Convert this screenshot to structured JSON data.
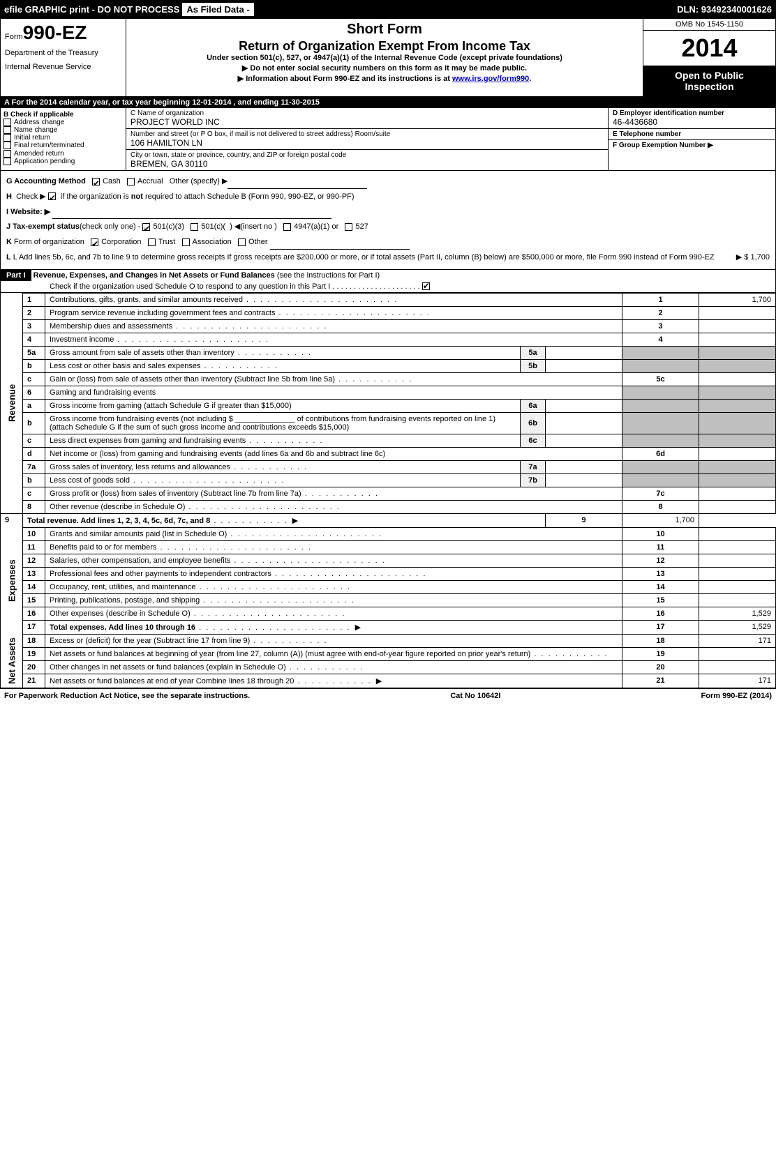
{
  "topbar": {
    "left": "efile GRAPHIC print - DO NOT PROCESS",
    "btn": "As Filed Data -",
    "right": "DLN: 93492340001626"
  },
  "header": {
    "form_prefix": "Form",
    "form_number": "990-EZ",
    "dept1": "Department of the Treasury",
    "dept2": "Internal Revenue Service",
    "short_form": "Short Form",
    "title": "Return of Organization Exempt From Income Tax",
    "subtitle": "Under section 501(c), 527, or 4947(a)(1) of the Internal Revenue Code (except private foundations)",
    "line1": "▶ Do not enter social security numbers on this form as it may be made public.",
    "line2_pre": "▶ Information about Form 990-EZ and its instructions is at ",
    "line2_link": "www.irs.gov/form990",
    "line2_post": ".",
    "omb": "OMB No 1545-1150",
    "year": "2014",
    "inspection1": "Open to Public",
    "inspection2": "Inspection"
  },
  "row_a": "A  For the 2014 calendar year, or tax year beginning 12-01-2014            , and ending 11-30-2015",
  "section_b": {
    "header": "B Check if applicable",
    "items": [
      "Address change",
      "Name change",
      "Initial return",
      "Final return/terminated",
      "Amended return",
      "Application pending"
    ]
  },
  "section_c": {
    "name_label": "C Name of organization",
    "name": "PROJECT WORLD INC",
    "street_label": "Number and street (or P O box, if mail is not delivered to street address) Room/suite",
    "street": "106 HAMILTON LN",
    "city_label": "City or town, state or province, country, and ZIP or foreign postal code",
    "city": "BREMEN, GA  30110"
  },
  "section_d": {
    "ein_label": "D Employer identification number",
    "ein": "46-4436680",
    "phone_label": "E Telephone number",
    "phone": "",
    "group_label": "F Group Exemption Number  ▶",
    "group": ""
  },
  "line_g_label": "G Accounting Method",
  "line_g_cash": "Cash",
  "line_g_accrual": "Accrual",
  "line_g_other": "Other (specify) ▶",
  "line_h": "H  Check ▶        if the organization is not required to attach Schedule B (Form 990, 990-EZ, or 990-PF)",
  "line_i": "I Website: ▶",
  "line_j": "J Tax-exempt status (check only one) -       501(c)(3)        501(c)(   ) ◀(insert no )      4947(a)(1) or      527",
  "line_k": "K Form of organization        Corporation      Trust      Association      Other",
  "line_l": "L Add lines 5b, 6c, and 7b to line 9 to determine gross receipts  If gross receipts are $200,000 or more, or if total assets (Part II, column (B) below) are $500,000 or more, file Form 990 instead of Form 990-EZ",
  "line_l_amount": "▶ $ 1,700",
  "part1": {
    "label": "Part I",
    "title": "Revenue, Expenses, and Changes in Net Assets or Fund Balances",
    "inst": "(see the instructions for Part I)",
    "check": "Check if the organization used Schedule O to respond to any question in this Part I  . . . . . . . . . . . . . . . . . . . . ."
  },
  "sections": {
    "revenue": "Revenue",
    "expenses": "Expenses",
    "netassets": "Net Assets"
  },
  "rows": [
    {
      "n": "1",
      "desc": "Contributions, gifts, grants, and similar amounts received",
      "rn": "1",
      "amt": "1,700"
    },
    {
      "n": "2",
      "desc": "Program service revenue including government fees and contracts",
      "rn": "2",
      "amt": ""
    },
    {
      "n": "3",
      "desc": "Membership dues and assessments",
      "rn": "3",
      "amt": ""
    },
    {
      "n": "4",
      "desc": "Investment income",
      "rn": "4",
      "amt": ""
    }
  ],
  "row5a": {
    "n": "5a",
    "desc": "Gross amount from sale of assets other than inventory",
    "sub": "5a"
  },
  "row5b": {
    "n": "b",
    "desc": "Less  cost or other basis and sales expenses",
    "sub": "5b"
  },
  "row5c": {
    "n": "c",
    "desc": "Gain or (loss) from sale of assets other than inventory (Subtract line 5b from line 5a)",
    "rn": "5c",
    "amt": ""
  },
  "row6": {
    "n": "6",
    "desc": "Gaming and fundraising events"
  },
  "row6a": {
    "n": "a",
    "desc": "Gross income from gaming (attach Schedule G if greater than $15,000)",
    "sub": "6a"
  },
  "row6b": {
    "n": "b",
    "desc": "Gross income from fundraising events (not including $ ______________ of contributions from fundraising events reported on line 1) (attach Schedule G if the sum of such gross income and contributions exceeds $15,000)",
    "sub": "6b"
  },
  "row6c": {
    "n": "c",
    "desc": "Less  direct expenses from gaming and fundraising events",
    "sub": "6c"
  },
  "row6d": {
    "n": "d",
    "desc": "Net income or (loss) from gaming and fundraising events (add lines 6a and 6b and subtract line 6c)",
    "rn": "6d",
    "amt": ""
  },
  "row7a": {
    "n": "7a",
    "desc": "Gross sales of inventory, less returns and allowances",
    "sub": "7a"
  },
  "row7b": {
    "n": "b",
    "desc": "Less  cost of goods sold",
    "sub": "7b"
  },
  "row7c": {
    "n": "c",
    "desc": "Gross profit or (loss) from sales of inventory (Subtract line 7b from line 7a)",
    "rn": "7c",
    "amt": ""
  },
  "row8": {
    "n": "8",
    "desc": "Other revenue (describe in Schedule O)",
    "rn": "8",
    "amt": ""
  },
  "row9": {
    "n": "9",
    "desc": "Total revenue. Add lines 1, 2, 3, 4, 5c, 6d, 7c, and 8",
    "rn": "9",
    "amt": "1,700",
    "bold": true,
    "arrow": "▶"
  },
  "exp_rows": [
    {
      "n": "10",
      "desc": "Grants and similar amounts paid (list in Schedule O)",
      "rn": "10",
      "amt": ""
    },
    {
      "n": "11",
      "desc": "Benefits paid to or for members",
      "rn": "11",
      "amt": ""
    },
    {
      "n": "12",
      "desc": "Salaries, other compensation, and employee benefits",
      "rn": "12",
      "amt": ""
    },
    {
      "n": "13",
      "desc": "Professional fees and other payments to independent contractors",
      "rn": "13",
      "amt": ""
    },
    {
      "n": "14",
      "desc": "Occupancy, rent, utilities, and maintenance",
      "rn": "14",
      "amt": ""
    },
    {
      "n": "15",
      "desc": "Printing, publications, postage, and shipping",
      "rn": "15",
      "amt": ""
    },
    {
      "n": "16",
      "desc": "Other expenses (describe in Schedule O)",
      "rn": "16",
      "amt": "1,529"
    },
    {
      "n": "17",
      "desc": "Total expenses. Add lines 10 through 16",
      "rn": "17",
      "amt": "1,529",
      "bold": true,
      "arrow": "▶"
    }
  ],
  "na_rows": [
    {
      "n": "18",
      "desc": "Excess or (deficit) for the year (Subtract line 17 from line 9)",
      "rn": "18",
      "amt": "171"
    },
    {
      "n": "19",
      "desc": "Net assets or fund balances at beginning of year (from line 27, column (A)) (must agree with end-of-year figure reported on prior year's return)",
      "rn": "19",
      "amt": ""
    },
    {
      "n": "20",
      "desc": "Other changes in net assets or fund balances (explain in Schedule O)",
      "rn": "20",
      "amt": ""
    },
    {
      "n": "21",
      "desc": "Net assets or fund balances at end of year  Combine lines 18 through 20",
      "rn": "21",
      "amt": "171",
      "arrow": "▶"
    }
  ],
  "footer": {
    "left": "For Paperwork Reduction Act Notice, see the separate instructions.",
    "center": "Cat No  10642I",
    "right": "Form 990-EZ (2014)"
  }
}
